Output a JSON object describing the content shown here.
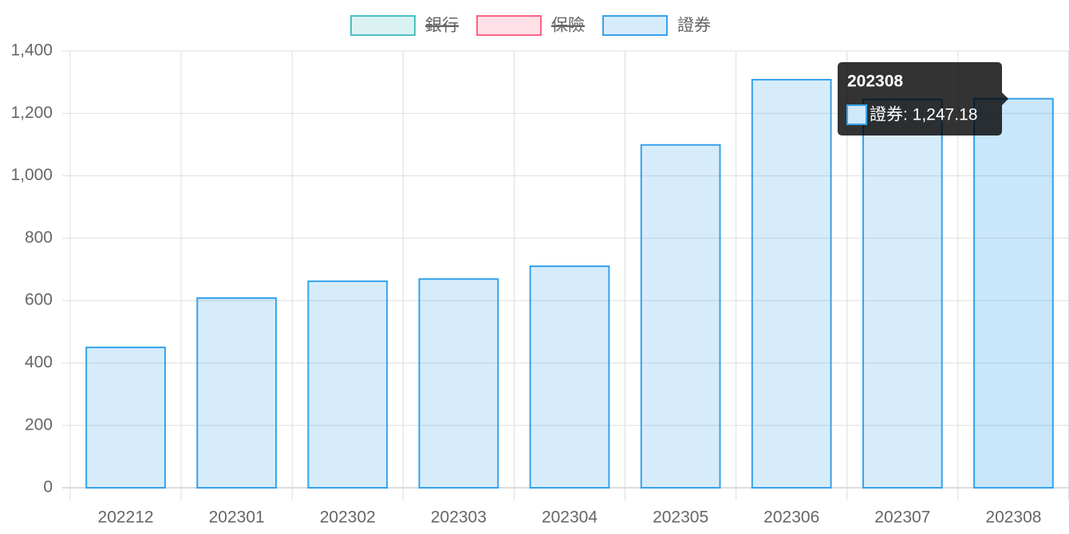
{
  "chart_data": {
    "type": "bar",
    "categories": [
      "202212",
      "202301",
      "202302",
      "202303",
      "202304",
      "202305",
      "202306",
      "202307",
      "202308"
    ],
    "series": [
      {
        "name": "銀行",
        "color": "#4bc0c0",
        "hidden": true,
        "values": [
          null,
          null,
          null,
          null,
          null,
          null,
          null,
          null,
          null
        ]
      },
      {
        "name": "保險",
        "color": "#ff6384",
        "hidden": true,
        "values": [
          null,
          null,
          null,
          null,
          null,
          null,
          null,
          null,
          null
        ]
      },
      {
        "name": "證券",
        "color": "#36a2eb",
        "hidden": false,
        "values": [
          450,
          608,
          662,
          669,
          710,
          1099,
          1308,
          1245,
          1247.18
        ]
      }
    ],
    "ylim": [
      0,
      1400
    ],
    "yticks": [
      0,
      200,
      400,
      600,
      800,
      {
        "value": 1000,
        "label": "1,000"
      },
      {
        "value": 1200,
        "label": "1,200"
      },
      {
        "value": 1400,
        "label": "1,400"
      }
    ],
    "grid": true,
    "legend": "top",
    "tooltip": {
      "title": "202308",
      "label": "證券: 1,247.18"
    }
  }
}
